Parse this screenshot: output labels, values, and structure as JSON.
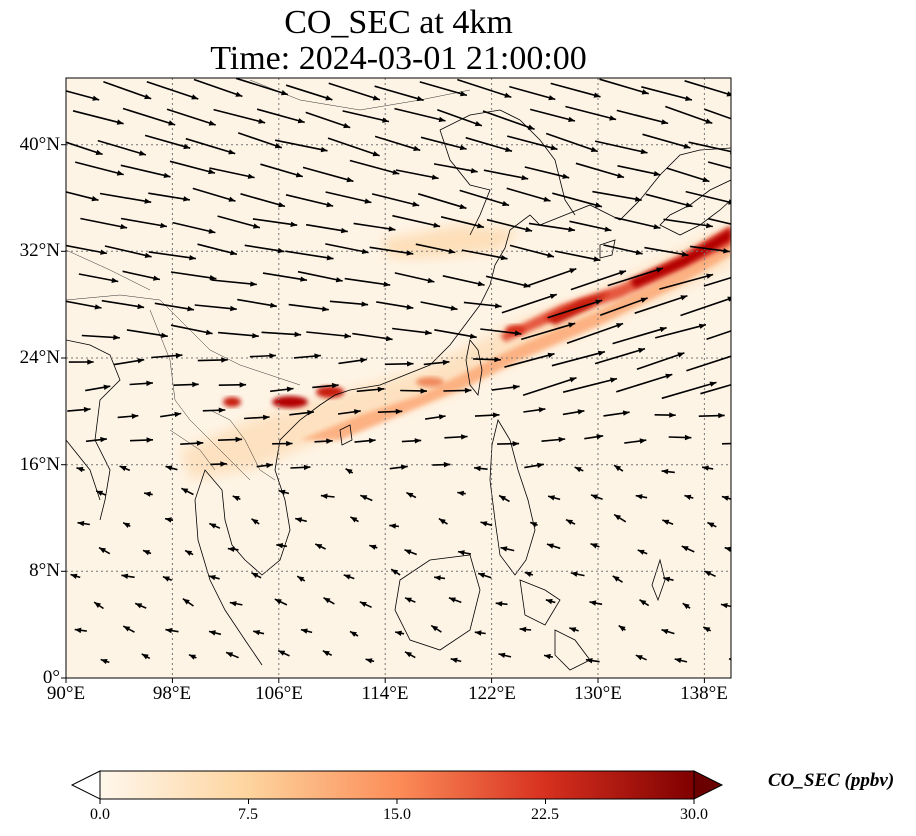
{
  "title": "CO_SEC at 4km",
  "subtitle": "Time: 2024-03-01 21:00:00",
  "map": {
    "lon_range": [
      90,
      140
    ],
    "lat_range": [
      0,
      45
    ],
    "lat_ticks": [
      {
        "value": 0,
        "label": "0°"
      },
      {
        "value": 8,
        "label": "8°N"
      },
      {
        "value": 16,
        "label": "16°N"
      },
      {
        "value": 24,
        "label": "24°N"
      },
      {
        "value": 32,
        "label": "32°N"
      },
      {
        "value": 40,
        "label": "40°N"
      }
    ],
    "lon_ticks": [
      {
        "value": 90,
        "label": "90°E"
      },
      {
        "value": 98,
        "label": "98°E"
      },
      {
        "value": 106,
        "label": "106°E"
      },
      {
        "value": 114,
        "label": "114°E"
      },
      {
        "value": 122,
        "label": "122°E"
      },
      {
        "value": 130,
        "label": "130°E"
      },
      {
        "value": 138,
        "label": "138°E"
      }
    ],
    "gridlines": true
  },
  "colorbar": {
    "label": "CO_SEC (ppbv)",
    "min": 0,
    "max": 30,
    "extend": "both",
    "colormap": "OrRd",
    "ticks": [
      "0.0",
      "7.5",
      "15.0",
      "22.5",
      "30.0"
    ]
  },
  "colors": {
    "background_field": "#fef4e6",
    "plume_low": "#fdd49e",
    "plume_mid": "#ef6548",
    "plume_high": "#b30000",
    "plume_max": "#7f0000",
    "coastline": "#000000",
    "wind_vectors": "#000000"
  }
}
